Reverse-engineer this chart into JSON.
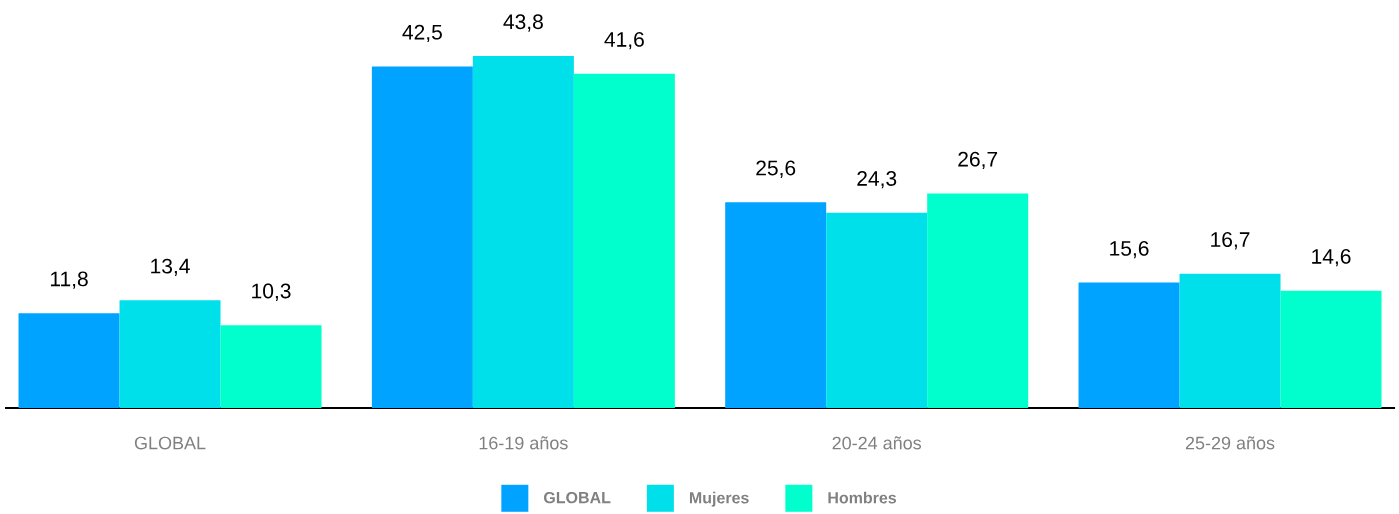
{
  "chart_data": {
    "type": "bar",
    "categories": [
      "GLOBAL",
      "16-19 años",
      "20-24 años",
      "25-29 años"
    ],
    "series": [
      {
        "name": "GLOBAL",
        "color": "#00a3ff",
        "values": [
          11.8,
          42.5,
          25.6,
          15.6
        ],
        "value_labels": [
          "11,8",
          "42,5",
          "25,6",
          "15,6"
        ]
      },
      {
        "name": "Mujeres",
        "color": "#00e0ea",
        "values": [
          13.4,
          43.8,
          24.3,
          16.7
        ],
        "value_labels": [
          "13,4",
          "43,8",
          "24,3",
          "16,7"
        ]
      },
      {
        "name": "Hombres",
        "color": "#00ffcc",
        "values": [
          10.3,
          41.6,
          26.7,
          14.6
        ],
        "value_labels": [
          "10,3",
          "41,6",
          "26,7",
          "14,6"
        ]
      }
    ],
    "legend": "bottom"
  }
}
